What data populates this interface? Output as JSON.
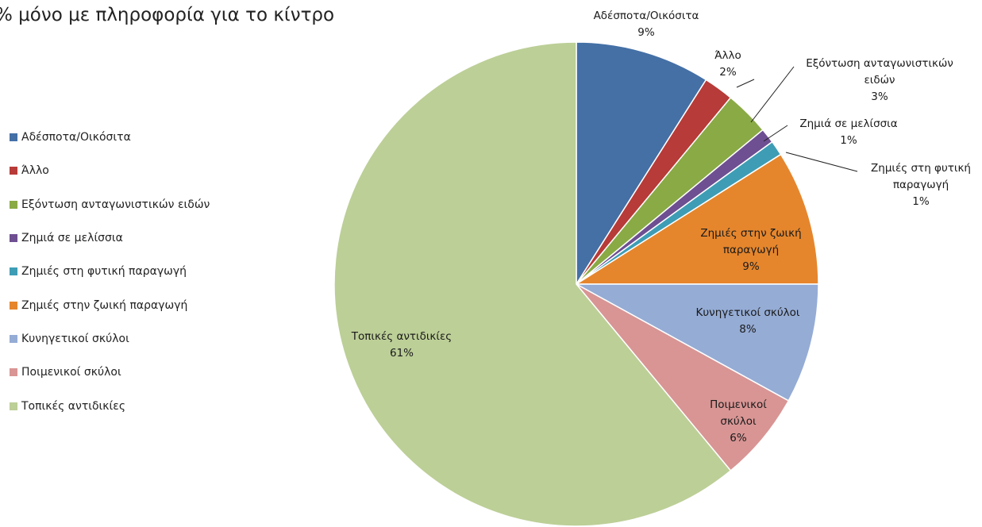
{
  "title": "% μόνο με πληροφορία  για το κίντρο",
  "chart_data": {
    "type": "pie",
    "title": "% μόνο με πληροφορία  για το κίντρο",
    "legend_position": "left",
    "slices": [
      {
        "label": "Αδέσποτα/Οικόσιτα",
        "value": 9,
        "label_lines": [
          "Αδέσποτα/Οικόσιτα",
          "9%"
        ],
        "color": "#4470a6"
      },
      {
        "label": "Άλλο",
        "value": 2,
        "label_lines": [
          "Άλλο",
          "2%"
        ],
        "color": "#b73b38"
      },
      {
        "label": "Εξόντωση ανταγωνιστικών ειδών",
        "value": 3,
        "label_lines": [
          "Εξόντωση ανταγωνιστικών",
          "ειδών",
          "3%"
        ],
        "color": "#8aaa45"
      },
      {
        "label": "Ζημιά σε μελίσσια",
        "value": 1,
        "label_lines": [
          "Ζημιά σε μελίσσια",
          "1%"
        ],
        "color": "#6e4f91"
      },
      {
        "label": "Ζημιές στη φυτική παραγωγή",
        "value": 1,
        "label_lines": [
          "Ζημιές στη φυτική",
          "παραγωγή",
          "1%"
        ],
        "color": "#3e9db5"
      },
      {
        "label": "Ζημιές στην ζωική παραγωγή",
        "value": 9,
        "label_lines": [
          "Ζημιές στην ζωική",
          "παραγωγή",
          "9%"
        ],
        "color": "#e5862d"
      },
      {
        "label": "Κυνηγετικοί σκύλοι",
        "value": 8,
        "label_lines": [
          "Κυνηγετικοί σκύλοι",
          "8%"
        ],
        "color": "#95acd5"
      },
      {
        "label": "Ποιμενικοί σκύλοι",
        "value": 6,
        "label_lines": [
          "Ποιμενικοί",
          "σκύλοι",
          "6%"
        ],
        "color": "#d89594"
      },
      {
        "label": "Τοπικές αντιδικίες",
        "value": 61,
        "label_lines": [
          "Τοπικές αντιδικίες",
          "61%"
        ],
        "color": "#bccf97"
      }
    ]
  }
}
